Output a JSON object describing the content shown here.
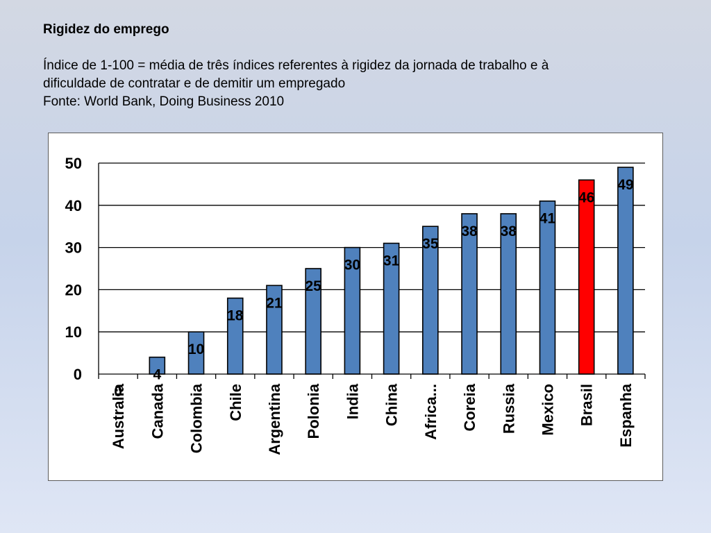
{
  "slide": {
    "title": "Rigidez do emprego",
    "description_line1": "Índice de 1-100 = média de três índices referentes à rigidez da jornada de trabalho e à",
    "description_line2": "dificuldade de contratar e de demitir um empregado",
    "source": "Fonte: World Bank, Doing Business 2010"
  },
  "chart_data": {
    "type": "bar",
    "title": "",
    "xlabel": "",
    "ylabel": "",
    "categories": [
      "Australia",
      "Canada",
      "Colombia",
      "Chile",
      "Argentina",
      "Polonia",
      "India",
      "China",
      "Africa...",
      "Coreia",
      "Russia",
      "Mexico",
      "Brasil",
      "Espanha"
    ],
    "values": [
      0,
      4,
      10,
      18,
      21,
      25,
      30,
      31,
      35,
      38,
      38,
      41,
      46,
      49
    ],
    "data_labels": [
      "0",
      "4",
      "10",
      "18",
      "21",
      "25",
      "30",
      "31",
      "35",
      "38",
      "38",
      "41",
      "46",
      "49"
    ],
    "ylim": [
      0,
      50
    ],
    "yticks": [
      0,
      10,
      20,
      30,
      40,
      50
    ],
    "ytick_labels": [
      "0",
      "10",
      "20",
      "30",
      "40",
      "50"
    ],
    "grid": true,
    "legend": "none",
    "bar_color": "#4f81bd",
    "highlight_category": "Brasil",
    "highlight_color": "#ff0000"
  }
}
